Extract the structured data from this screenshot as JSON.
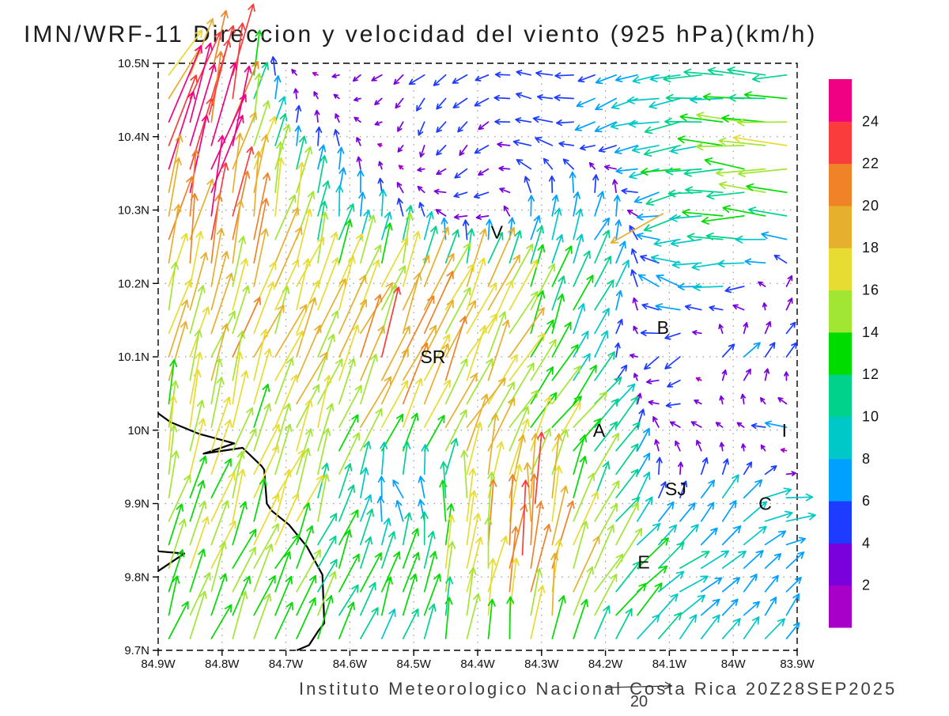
{
  "title": "IMN/WRF-11 Direccion y velocidad del viento (925 hPa)(km/h)",
  "footer": {
    "text": "Instituto Meteorologico Nacional Costa Rica 20Z28SEP2025",
    "reference_arrow": {
      "label": "20",
      "value": 20
    }
  },
  "chart_data": {
    "type": "vector_field_map",
    "model": "IMN/WRF-11",
    "variable": "Direccion y velocidad del viento",
    "level": "925 hPa",
    "units": "km/h",
    "valid_time": "20Z28SEP2025",
    "x_axis": {
      "tick_labels": [
        "84.9W",
        "84.8W",
        "84.7W",
        "84.6W",
        "84.5W",
        "84.4W",
        "84.3W",
        "84.2W",
        "84.1W",
        "84W",
        "83.9W"
      ],
      "lon_range": [
        84.9,
        83.9
      ]
    },
    "y_axis": {
      "tick_labels": [
        "10.5N",
        "10.4N",
        "10.3N",
        "10.2N",
        "10.1N",
        "10N",
        "9.9N",
        "9.8N",
        "9.7N"
      ],
      "lat_range": [
        9.7,
        10.5
      ]
    },
    "colorbar": {
      "units": "km/h",
      "levels": [
        2,
        4,
        6,
        8,
        10,
        12,
        14,
        16,
        18,
        20,
        22,
        24
      ],
      "colors": [
        "#A800C8",
        "#7A00DC",
        "#1E3CFF",
        "#00A0FF",
        "#00C8C8",
        "#00D28C",
        "#00DC00",
        "#A0E632",
        "#E6DC32",
        "#E6AF2D",
        "#F08228",
        "#FA3C3C",
        "#F00082"
      ]
    },
    "wind_grid": {
      "lons": [
        84.9,
        84.8,
        84.7,
        84.6,
        84.5,
        84.4,
        84.3,
        84.2,
        84.1,
        84.0,
        83.9
      ],
      "lats": [
        9.7,
        9.8,
        9.9,
        10.0,
        10.1,
        10.2,
        10.3,
        10.4,
        10.5
      ],
      "uv_kmh": [
        [
          [
            4,
            12
          ],
          [
            5,
            13
          ],
          [
            6,
            12
          ],
          [
            4,
            10
          ],
          [
            3,
            10
          ],
          [
            2,
            12
          ],
          [
            3,
            14
          ],
          [
            6,
            10
          ],
          [
            5,
            7
          ],
          [
            5,
            6
          ],
          [
            4,
            6
          ]
        ],
        [
          [
            5,
            13
          ],
          [
            6,
            14
          ],
          [
            7,
            13
          ],
          [
            5,
            11
          ],
          [
            4,
            12
          ],
          [
            3,
            18
          ],
          [
            2,
            21
          ],
          [
            8,
            12
          ],
          [
            9,
            6
          ],
          [
            5,
            5
          ],
          [
            4,
            5
          ]
        ],
        [
          [
            4,
            14
          ],
          [
            5,
            15
          ],
          [
            6,
            14
          ],
          [
            2,
            10
          ],
          [
            -4,
            4
          ],
          [
            1,
            16
          ],
          [
            2,
            20
          ],
          [
            7,
            10
          ],
          [
            2,
            5
          ],
          [
            6,
            8
          ],
          [
            10,
            -2
          ]
        ],
        [
          [
            3,
            15
          ],
          [
            4,
            16
          ],
          [
            5,
            14
          ],
          [
            6,
            14
          ],
          [
            8,
            16
          ],
          [
            9,
            15
          ],
          [
            8,
            12
          ],
          [
            9,
            9
          ],
          [
            -4,
            2
          ],
          [
            -2,
            1
          ],
          [
            -7,
            1
          ]
        ],
        [
          [
            4,
            16
          ],
          [
            6,
            17
          ],
          [
            7,
            16
          ],
          [
            8,
            17
          ],
          [
            7,
            18
          ],
          [
            8,
            16
          ],
          [
            6,
            13
          ],
          [
            2,
            6
          ],
          [
            -6,
            -5
          ],
          [
            5,
            6
          ],
          [
            3,
            3
          ]
        ],
        [
          [
            3,
            17
          ],
          [
            5,
            18
          ],
          [
            6,
            16
          ],
          [
            5,
            15
          ],
          [
            6,
            16
          ],
          [
            7,
            17
          ],
          [
            5,
            12
          ],
          [
            6,
            8
          ],
          [
            -8,
            4
          ],
          [
            -9,
            -2
          ],
          [
            3,
            4
          ]
        ],
        [
          [
            4,
            20
          ],
          [
            6,
            22
          ],
          [
            3,
            16
          ],
          [
            1,
            8
          ],
          [
            -2,
            5
          ],
          [
            -5,
            -3
          ],
          [
            0,
            7
          ],
          [
            3,
            8
          ],
          [
            -10,
            -4
          ],
          [
            -12,
            0
          ],
          [
            -14,
            2
          ]
        ],
        [
          [
            8,
            22
          ],
          [
            7,
            24
          ],
          [
            2,
            6
          ],
          [
            -2,
            3
          ],
          [
            -1,
            -4
          ],
          [
            -3,
            -3
          ],
          [
            -6,
            2
          ],
          [
            -5,
            -3
          ],
          [
            -10,
            -2
          ],
          [
            -13,
            2
          ],
          [
            -15,
            0
          ]
        ],
        [
          [
            10,
            16
          ],
          [
            6,
            22
          ],
          [
            -2,
            2
          ],
          [
            -2,
            -2
          ],
          [
            -4,
            -3
          ],
          [
            -5,
            -2
          ],
          [
            -4,
            2
          ],
          [
            -6,
            -2
          ],
          [
            -9,
            -1
          ],
          [
            -11,
            1
          ],
          [
            -12,
            0
          ]
        ]
      ]
    },
    "anomalies": [
      {
        "lon": 84.11,
        "lat": 10.295,
        "u": -16,
        "v": -9
      },
      {
        "lon": 84.33,
        "lat": 9.83,
        "u": 1,
        "v": 23
      },
      {
        "lon": 84.31,
        "lat": 9.9,
        "u": 2,
        "v": 22
      },
      {
        "lon": 84.82,
        "lat": 10.43,
        "u": 6,
        "v": 23
      }
    ],
    "cities": [
      {
        "label": "V",
        "lon": 84.37,
        "lat": 10.27
      },
      {
        "label": "SR",
        "lon": 84.47,
        "lat": 10.1
      },
      {
        "label": "B",
        "lon": 84.11,
        "lat": 10.14
      },
      {
        "label": "A",
        "lon": 84.21,
        "lat": 10.0
      },
      {
        "label": "SJ",
        "lon": 84.09,
        "lat": 9.92
      },
      {
        "label": "C",
        "lon": 83.95,
        "lat": 9.9
      },
      {
        "label": "E",
        "lon": 84.14,
        "lat": 9.82
      },
      {
        "label": "I",
        "lon": 83.92,
        "lat": 10.0
      }
    ],
    "coastline": [
      [
        [
          84.9,
          10.023
        ],
        [
          84.881,
          10.011
        ],
        [
          84.836,
          9.995
        ],
        [
          84.781,
          9.982
        ],
        [
          84.829,
          9.968
        ],
        [
          84.768,
          9.976
        ],
        [
          84.738,
          9.951
        ],
        [
          84.734,
          9.946
        ],
        [
          84.73,
          9.9
        ],
        [
          84.722,
          9.89
        ],
        [
          84.695,
          9.871
        ],
        [
          84.667,
          9.841
        ],
        [
          84.643,
          9.803
        ],
        [
          84.64,
          9.737
        ],
        [
          84.649,
          9.727
        ],
        [
          84.664,
          9.707
        ],
        [
          84.683,
          9.7
        ]
      ],
      [
        [
          84.9,
          9.835
        ],
        [
          84.859,
          9.832
        ],
        [
          84.9,
          9.808
        ]
      ]
    ]
  }
}
